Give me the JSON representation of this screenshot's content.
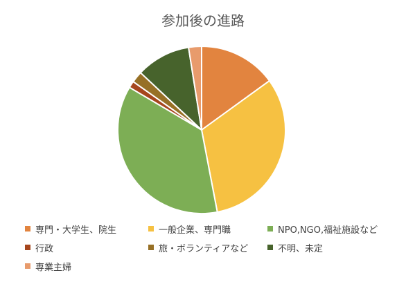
{
  "chart_data": {
    "type": "pie",
    "title": "参加後の進路",
    "categories": [
      "専門・大学生、院生",
      "一般企業、専門職",
      "NPO,NGO,福祉施設など",
      "行政",
      "旅・ボランティアなど",
      "不明、未定",
      "専業主婦"
    ],
    "values": [
      15.0,
      32.0,
      36.5,
      1.3,
      2.2,
      10.5,
      2.5
    ],
    "colors": [
      "#E2843F",
      "#F6C142",
      "#7DAE55",
      "#A6461D",
      "#977026",
      "#47632C",
      "#E89B6C"
    ],
    "legend_position": "bottom",
    "start_angle_deg": 0,
    "direction": "clockwise"
  }
}
